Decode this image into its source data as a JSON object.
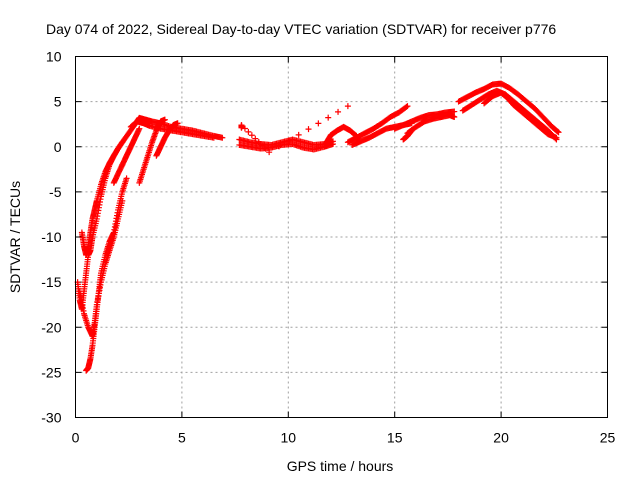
{
  "chart_data": {
    "type": "scatter",
    "title": "Day 074 of 2022, Sidereal Day-to-day VTEC variation (SDTVAR) for receiver p776",
    "xlabel": "GPS time / hours",
    "ylabel": "SDTVAR / TECUs",
    "xlim": [
      0,
      25
    ],
    "ylim": [
      -30,
      10
    ],
    "xticks": [
      "0",
      "5",
      "10",
      "15",
      "20",
      "25"
    ],
    "yticks": [
      "10",
      "5",
      "0",
      "-5",
      "-10",
      "-15",
      "-20",
      "-25",
      "-30"
    ],
    "grid": true,
    "marker": "+",
    "series_color": "#ff0000",
    "segments": [
      {
        "name": "early-steep-1",
        "points": [
          [
            0.1,
            -15
          ],
          [
            0.2,
            -17
          ],
          [
            0.3,
            -18
          ],
          [
            0.4,
            -16
          ],
          [
            0.5,
            -14
          ],
          [
            0.6,
            -12
          ],
          [
            0.7,
            -11.5
          ],
          [
            0.8,
            -10
          ],
          [
            1.0,
            -8
          ],
          [
            1.2,
            -5.5
          ],
          [
            1.4,
            -3.5
          ],
          [
            1.6,
            -2
          ],
          [
            1.8,
            -1
          ],
          [
            2.0,
            -0.2
          ],
          [
            2.2,
            0.5
          ]
        ]
      },
      {
        "name": "early-steep-2",
        "points": [
          [
            0.3,
            -9.5
          ],
          [
            0.4,
            -11
          ],
          [
            0.5,
            -12
          ],
          [
            0.6,
            -11
          ],
          [
            0.7,
            -9.5
          ],
          [
            0.8,
            -8
          ],
          [
            0.9,
            -7
          ],
          [
            1.0,
            -6
          ],
          [
            1.2,
            -4.2
          ],
          [
            1.4,
            -2.8
          ],
          [
            1.6,
            -1.8
          ],
          [
            1.8,
            -1
          ],
          [
            2.0,
            -0.2
          ]
        ]
      },
      {
        "name": "early-dip",
        "points": [
          [
            0.2,
            -16
          ],
          [
            0.4,
            -18.5
          ],
          [
            0.6,
            -20
          ],
          [
            0.8,
            -21
          ],
          [
            0.9,
            -19.5
          ],
          [
            1.0,
            -17.5
          ],
          [
            1.2,
            -15
          ],
          [
            1.4,
            -13
          ],
          [
            1.6,
            -11.5
          ],
          [
            1.8,
            -10
          ],
          [
            2.0,
            -8
          ],
          [
            2.2,
            -6
          ]
        ]
      },
      {
        "name": "deep-dip",
        "points": [
          [
            0.5,
            -24.8
          ],
          [
            0.6,
            -24.5
          ],
          [
            0.7,
            -23.5
          ],
          [
            0.8,
            -22
          ],
          [
            0.9,
            -20
          ],
          [
            1.0,
            -18
          ],
          [
            1.1,
            -16
          ],
          [
            1.2,
            -14
          ],
          [
            1.4,
            -12
          ],
          [
            1.6,
            -10.5
          ],
          [
            1.8,
            -9.5
          ],
          [
            2.0,
            -7
          ],
          [
            2.2,
            -5
          ],
          [
            2.4,
            -3.5
          ]
        ]
      },
      {
        "name": "rise-to-plateau",
        "points": [
          [
            2.2,
            0.5
          ],
          [
            2.5,
            1.5
          ],
          [
            2.8,
            2.5
          ],
          [
            3.0,
            3.2
          ],
          [
            3.3,
            3
          ],
          [
            3.6,
            2.8
          ],
          [
            4.0,
            2.6
          ],
          [
            4.5,
            2.2
          ],
          [
            5.0,
            2
          ],
          [
            5.5,
            1.8
          ],
          [
            6.0,
            1.5
          ],
          [
            6.5,
            1.2
          ],
          [
            6.9,
            1
          ]
        ]
      },
      {
        "name": "rise-to-plateau-2",
        "points": [
          [
            2.6,
            2.2
          ],
          [
            2.9,
            2.8
          ],
          [
            3.2,
            2.6
          ],
          [
            3.5,
            2.3
          ],
          [
            4.0,
            2
          ],
          [
            4.5,
            1.8
          ],
          [
            5.0,
            1.6
          ],
          [
            5.5,
            1.4
          ],
          [
            6.0,
            1.2
          ],
          [
            6.5,
            1
          ]
        ]
      },
      {
        "name": "mid-climb-a",
        "points": [
          [
            3.0,
            -4
          ],
          [
            3.2,
            -2.5
          ],
          [
            3.4,
            -1
          ],
          [
            3.6,
            0.5
          ],
          [
            3.8,
            1.8
          ],
          [
            4.0,
            2.8
          ],
          [
            4.2,
            3
          ]
        ]
      },
      {
        "name": "mid-climb-b",
        "points": [
          [
            3.8,
            -1
          ],
          [
            4.0,
            0
          ],
          [
            4.2,
            1
          ],
          [
            4.4,
            1.8
          ],
          [
            4.6,
            2.4
          ],
          [
            4.8,
            2.6
          ]
        ]
      },
      {
        "name": "mid-climb-c",
        "points": [
          [
            2.2,
            -2
          ],
          [
            2.4,
            -1
          ],
          [
            2.6,
            0
          ],
          [
            2.8,
            1
          ],
          [
            3.0,
            2
          ]
        ]
      },
      {
        "name": "mid-climb-d",
        "points": [
          [
            1.8,
            -4
          ],
          [
            2.0,
            -3
          ],
          [
            2.2,
            -2
          ]
        ]
      },
      {
        "name": "midday-flat-1",
        "points": [
          [
            7.7,
            0.8
          ],
          [
            8.2,
            0.5
          ],
          [
            8.7,
            0.3
          ],
          [
            9.2,
            0.2
          ],
          [
            9.7,
            0.5
          ],
          [
            10.2,
            0.8
          ],
          [
            10.7,
            0.5
          ],
          [
            11.2,
            0.2
          ],
          [
            11.7,
            0.3
          ],
          [
            12.1,
            0.6
          ]
        ]
      },
      {
        "name": "midday-flat-2",
        "points": [
          [
            7.7,
            0.2
          ],
          [
            8.2,
            0
          ],
          [
            8.7,
            -0.2
          ],
          [
            9.2,
            -0.1
          ],
          [
            9.7,
            0.2
          ],
          [
            10.2,
            0.3
          ],
          [
            10.7,
            -0.1
          ],
          [
            11.2,
            -0.3
          ],
          [
            11.7,
            0
          ],
          [
            12.1,
            0.3
          ]
        ]
      },
      {
        "name": "midday-outlier",
        "points": [
          [
            7.8,
            2.1
          ],
          [
            7.8,
            2.4
          ],
          [
            9.1,
            -0.6
          ],
          [
            12.8,
            4.5
          ]
        ]
      },
      {
        "name": "afternoon-hump",
        "points": [
          [
            11.8,
            0.5
          ],
          [
            12.0,
            1.3
          ],
          [
            12.3,
            1.8
          ],
          [
            12.6,
            2.2
          ],
          [
            12.9,
            1.8
          ],
          [
            13.2,
            1.2
          ]
        ]
      },
      {
        "name": "afternoon-climb-1",
        "points": [
          [
            12.8,
            0.5
          ],
          [
            13.2,
            1
          ],
          [
            13.6,
            1.5
          ],
          [
            14.0,
            2
          ],
          [
            14.4,
            2.6
          ],
          [
            14.8,
            3.3
          ],
          [
            15.2,
            3.8
          ],
          [
            15.6,
            4.5
          ]
        ]
      },
      {
        "name": "afternoon-climb-2",
        "points": [
          [
            13.0,
            0.2
          ],
          [
            13.4,
            0.6
          ],
          [
            13.8,
            1
          ],
          [
            14.2,
            1.5
          ],
          [
            14.6,
            2
          ],
          [
            15.0,
            2.2
          ],
          [
            15.4,
            2.4
          ],
          [
            15.8,
            2.6
          ]
        ]
      },
      {
        "name": "late-band-1",
        "points": [
          [
            15.0,
            2
          ],
          [
            15.4,
            2.4
          ],
          [
            15.8,
            2.8
          ],
          [
            16.2,
            3.2
          ],
          [
            16.6,
            3.5
          ],
          [
            17.0,
            3.6
          ],
          [
            17.4,
            3.8
          ],
          [
            17.8,
            3.9
          ]
        ]
      },
      {
        "name": "late-band-2",
        "points": [
          [
            15.6,
            1.5
          ],
          [
            16.0,
            2.2
          ],
          [
            16.4,
            2.8
          ],
          [
            16.8,
            3.1
          ],
          [
            17.2,
            3.3
          ],
          [
            17.6,
            3.5
          ],
          [
            17.8,
            3.3
          ]
        ]
      },
      {
        "name": "late-band-3",
        "points": [
          [
            15.4,
            0.8
          ],
          [
            15.6,
            1.2
          ],
          [
            15.8,
            1.8
          ]
        ]
      },
      {
        "name": "evening-peak-1",
        "points": [
          [
            18.0,
            5
          ],
          [
            18.4,
            5.5
          ],
          [
            18.8,
            6
          ],
          [
            19.2,
            6.4
          ],
          [
            19.6,
            6.9
          ],
          [
            20.0,
            7
          ],
          [
            20.4,
            6.5
          ],
          [
            20.8,
            5.8
          ],
          [
            21.2,
            5
          ],
          [
            21.6,
            4.2
          ],
          [
            22.0,
            3.2
          ],
          [
            22.4,
            2.2
          ],
          [
            22.7,
            1.6
          ]
        ]
      },
      {
        "name": "evening-peak-2",
        "points": [
          [
            18.2,
            4
          ],
          [
            18.6,
            4.6
          ],
          [
            19.0,
            5.2
          ],
          [
            19.4,
            5.8
          ],
          [
            19.8,
            6.2
          ],
          [
            20.2,
            5.8
          ],
          [
            20.6,
            5
          ],
          [
            21.0,
            4.2
          ],
          [
            21.4,
            3.4
          ],
          [
            21.8,
            2.6
          ],
          [
            22.2,
            1.8
          ],
          [
            22.6,
            0.8
          ]
        ]
      },
      {
        "name": "evening-peak-3",
        "points": [
          [
            19.2,
            4.8
          ],
          [
            19.6,
            5.6
          ],
          [
            20.0,
            6
          ],
          [
            20.3,
            5.4
          ],
          [
            20.6,
            4.6
          ],
          [
            21.0,
            3.8
          ],
          [
            21.4,
            3
          ],
          [
            21.8,
            2.2
          ],
          [
            22.2,
            1.4
          ],
          [
            22.6,
            1
          ]
        ]
      }
    ]
  }
}
